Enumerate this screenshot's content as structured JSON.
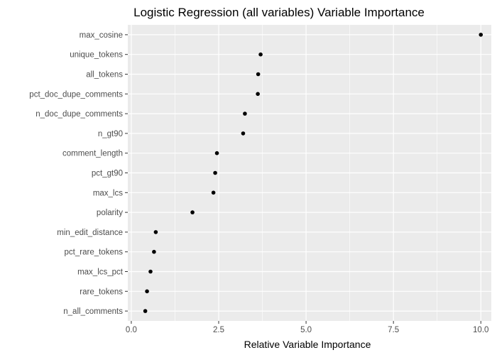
{
  "chart_data": {
    "type": "scatter",
    "title": "Logistic Regression (all variables) Variable Importance",
    "xlabel": "Relative Variable Importance",
    "ylabel": "",
    "xlim": [
      -0.1,
      10.3
    ],
    "xticks": [
      0.0,
      2.5,
      5.0,
      7.5,
      10.0
    ],
    "xtick_labels": [
      "0.0",
      "2.5",
      "5.0",
      "7.5",
      "10.0"
    ],
    "grid": true,
    "point_color": "#000000",
    "panel_background": "#ebebeb",
    "grid_color": "#ffffff",
    "categories": [
      "max_cosine",
      "unique_tokens",
      "all_tokens",
      "pct_doc_dupe_comments",
      "n_doc_dupe_comments",
      "n_gt90",
      "comment_length",
      "pct_gt90",
      "max_lcs",
      "polarity",
      "min_edit_distance",
      "pct_rare_tokens",
      "max_lcs_pct",
      "rare_tokens",
      "n_all_comments"
    ],
    "values": [
      10.0,
      3.7,
      3.63,
      3.62,
      3.25,
      3.2,
      2.45,
      2.4,
      2.35,
      1.75,
      0.7,
      0.65,
      0.55,
      0.45,
      0.4
    ]
  }
}
